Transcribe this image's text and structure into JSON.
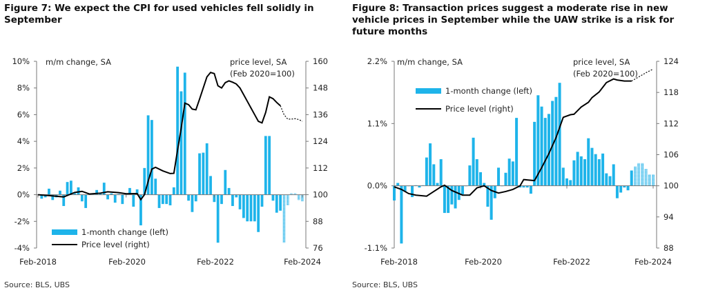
{
  "chart_data": [
    {
      "type": "bar+line",
      "title": "Figure 7: We expect the CPI for used vehicles fell solidly in September",
      "source": "Source: BLS, UBS",
      "left_axis_label": "m/m change, SA",
      "right_axis_label_1": "price level, SA",
      "right_axis_label_2": "(Feb 2020=100)",
      "left_ticks": [
        "10%",
        "8%",
        "6%",
        "4%",
        "2%",
        "0%",
        "-2%",
        "-4%"
      ],
      "left_tick_values": [
        10,
        8,
        6,
        4,
        2,
        0,
        -2,
        -4
      ],
      "right_ticks": [
        "160",
        "148",
        "136",
        "124",
        "112",
        "100",
        "88",
        "76"
      ],
      "right_tick_values": [
        160,
        148,
        136,
        124,
        112,
        100,
        88,
        76
      ],
      "ylim_left": [
        -4,
        10
      ],
      "ylim_right": [
        76,
        160
      ],
      "x_ticks": [
        "Feb-2018",
        "Feb-2020",
        "Feb-2022",
        "Feb-2024"
      ],
      "x_range": [
        "Feb-2018",
        "Feb-2024"
      ],
      "legend": {
        "bar": "1-month change (left)",
        "line": "Price level (right)",
        "placement": "bottom-left"
      },
      "bar_color": "#1eb4ea",
      "line_color": "#000000",
      "bar_start_month": "Mar-2018",
      "bars": [
        -0.3,
        -0.2,
        0.45,
        -0.4,
        -0.2,
        0.3,
        -0.85,
        0.95,
        1.05,
        0.1,
        0.55,
        -0.5,
        -1.0,
        0.05,
        0.1,
        0.35,
        0.1,
        0.9,
        -0.35,
        0.1,
        -0.6,
        0.05,
        -0.7,
        0.1,
        0.5,
        -0.9,
        0.4,
        -2.3,
        2.0,
        5.95,
        5.6,
        1.2,
        -1.0,
        -0.7,
        -0.7,
        -0.8,
        0.55,
        9.6,
        7.75,
        9.15,
        -0.45,
        -1.3,
        -0.5,
        3.1,
        3.15,
        3.85,
        1.4,
        -0.55,
        -3.6,
        -0.7,
        1.85,
        0.5,
        -0.85,
        -0.2,
        -1.1,
        -1.75,
        -2.0,
        -2.0,
        -2.0,
        -2.8,
        -0.9,
        4.4,
        4.4,
        -0.45,
        -1.35,
        -1.2,
        -3.6,
        -0.8,
        0.1,
        0.1,
        -0.4,
        -0.5
      ],
      "bars_forecast_from": "Sep-2023",
      "line": [
        [
          0,
          100
        ],
        [
          3,
          99.6
        ],
        [
          7,
          99
        ],
        [
          10,
          101
        ],
        [
          12,
          101.5
        ],
        [
          14,
          100.3
        ],
        [
          17,
          100.7
        ],
        [
          19,
          101.3
        ],
        [
          22,
          100.9
        ],
        [
          24,
          100.4
        ],
        [
          27,
          100.5
        ],
        [
          28,
          97.8
        ],
        [
          29,
          100
        ],
        [
          30,
          106
        ],
        [
          31,
          111.5
        ],
        [
          32,
          112.3
        ],
        [
          34,
          110.7
        ],
        [
          36,
          109.5
        ],
        [
          37,
          109.6
        ],
        [
          38,
          120
        ],
        [
          39,
          130
        ],
        [
          40,
          141.2
        ],
        [
          41,
          140.5
        ],
        [
          42,
          138.5
        ],
        [
          43,
          138.2
        ],
        [
          44,
          143
        ],
        [
          45,
          148
        ],
        [
          46,
          153
        ],
        [
          47,
          155
        ],
        [
          48,
          154.5
        ],
        [
          49,
          149
        ],
        [
          50,
          148
        ],
        [
          51,
          150.4
        ],
        [
          52,
          151.2
        ],
        [
          53,
          150.6
        ],
        [
          54,
          149.8
        ],
        [
          55,
          148
        ],
        [
          56,
          145
        ],
        [
          57,
          142
        ],
        [
          58,
          139
        ],
        [
          59,
          136
        ],
        [
          60,
          133
        ],
        [
          61,
          132.3
        ],
        [
          62,
          137
        ],
        [
          63,
          144
        ],
        [
          64,
          143.2
        ],
        [
          65,
          141.5
        ],
        [
          66,
          140
        ]
      ],
      "line_forecast": [
        [
          66,
          140
        ],
        [
          67,
          136
        ],
        [
          68,
          134
        ],
        [
          69,
          134
        ],
        [
          70,
          134.2
        ],
        [
          71,
          133.8
        ],
        [
          72,
          133
        ]
      ],
      "line_x_unit": "months since Feb-2018"
    },
    {
      "type": "bar+line",
      "title": "Figure 8: Transaction prices suggest a moderate rise in new vehicle prices in September while the UAW strike is a risk for future months",
      "source": "Source: BLS, UBS",
      "left_axis_label": "m/m change, SA",
      "right_axis_label_1": "price level, SA",
      "right_axis_label_2": "(Feb 2020=100)",
      "left_ticks": [
        "2.2%",
        "1.1%",
        "0.0%",
        "-1.1%"
      ],
      "left_tick_values": [
        2.2,
        1.1,
        0,
        -1.1
      ],
      "right_ticks": [
        "124",
        "118",
        "112",
        "106",
        "100",
        "94",
        "88"
      ],
      "right_tick_values": [
        124,
        118,
        112,
        106,
        100,
        94,
        88
      ],
      "ylim_left": [
        -1.1,
        2.2
      ],
      "ylim_right": [
        88,
        124
      ],
      "x_ticks": [
        "Feb-2018",
        "Feb-2020",
        "Feb-2022",
        "Feb-2024"
      ],
      "x_range": [
        "Feb-2018",
        "Feb-2024"
      ],
      "legend": {
        "bar": "1-month change (left)",
        "line": "Price level (right)",
        "placement": "top-left"
      },
      "bar_color": "#1eb4ea",
      "line_color": "#000000",
      "bar_start_month": "Feb-2018",
      "bars": [
        -0.26,
        0.05,
        -1.02,
        -0.1,
        0,
        -0.2,
        0.01,
        -0.03,
        0.01,
        0.5,
        0.75,
        0.38,
        0.05,
        0.47,
        -0.48,
        -0.48,
        -0.33,
        -0.4,
        -0.25,
        -0.15,
        0,
        0.36,
        0.85,
        0.47,
        0.24,
        0.05,
        -0.37,
        -0.6,
        -0.22,
        0.32,
        0,
        0.23,
        0.48,
        0.43,
        1.2,
        -0.03,
        -0.03,
        -0.03,
        -0.14,
        1.13,
        1.6,
        1.4,
        1.2,
        1.27,
        1.5,
        1.57,
        1.82,
        0.32,
        0.13,
        0.1,
        0.45,
        0.6,
        0.52,
        0.47,
        0.84,
        0.67,
        0.56,
        0.47,
        0.57,
        0.22,
        0.17,
        0.38,
        -0.22,
        -0.12,
        -0.03,
        -0.08,
        0.27,
        0.34,
        0.4,
        0.4,
        0.3,
        0.2,
        0.2
      ],
      "bars_forecast_from": "Sep-2023",
      "line": [
        [
          0,
          99.8
        ],
        [
          2,
          99.3
        ],
        [
          4,
          98.5
        ],
        [
          6,
          98.2
        ],
        [
          9,
          98
        ],
        [
          11,
          98.9
        ],
        [
          13,
          99.8
        ],
        [
          14,
          100.1
        ],
        [
          16,
          99.1
        ],
        [
          19,
          98.2
        ],
        [
          21,
          98.2
        ],
        [
          23,
          99.6
        ],
        [
          25,
          100
        ],
        [
          27,
          99.1
        ],
        [
          29,
          98.6
        ],
        [
          31,
          98.9
        ],
        [
          33,
          99.3
        ],
        [
          35,
          100
        ],
        [
          36,
          101.2
        ],
        [
          39,
          101
        ],
        [
          41,
          103.5
        ],
        [
          43,
          106.2
        ],
        [
          45,
          109.3
        ],
        [
          47,
          113.2
        ],
        [
          49,
          113.7
        ],
        [
          50,
          113.8
        ],
        [
          52,
          115.2
        ],
        [
          54,
          116.1
        ],
        [
          55,
          117
        ],
        [
          57,
          118.1
        ],
        [
          59,
          119.9
        ],
        [
          61,
          120.6
        ],
        [
          62,
          120.4
        ],
        [
          64,
          120.2
        ],
        [
          66,
          120.2
        ]
      ],
      "line_forecast": [
        [
          66,
          120.2
        ],
        [
          68,
          121
        ],
        [
          70,
          121.8
        ],
        [
          72,
          122.5
        ]
      ],
      "line_x_unit": "months since Feb-2018"
    }
  ]
}
